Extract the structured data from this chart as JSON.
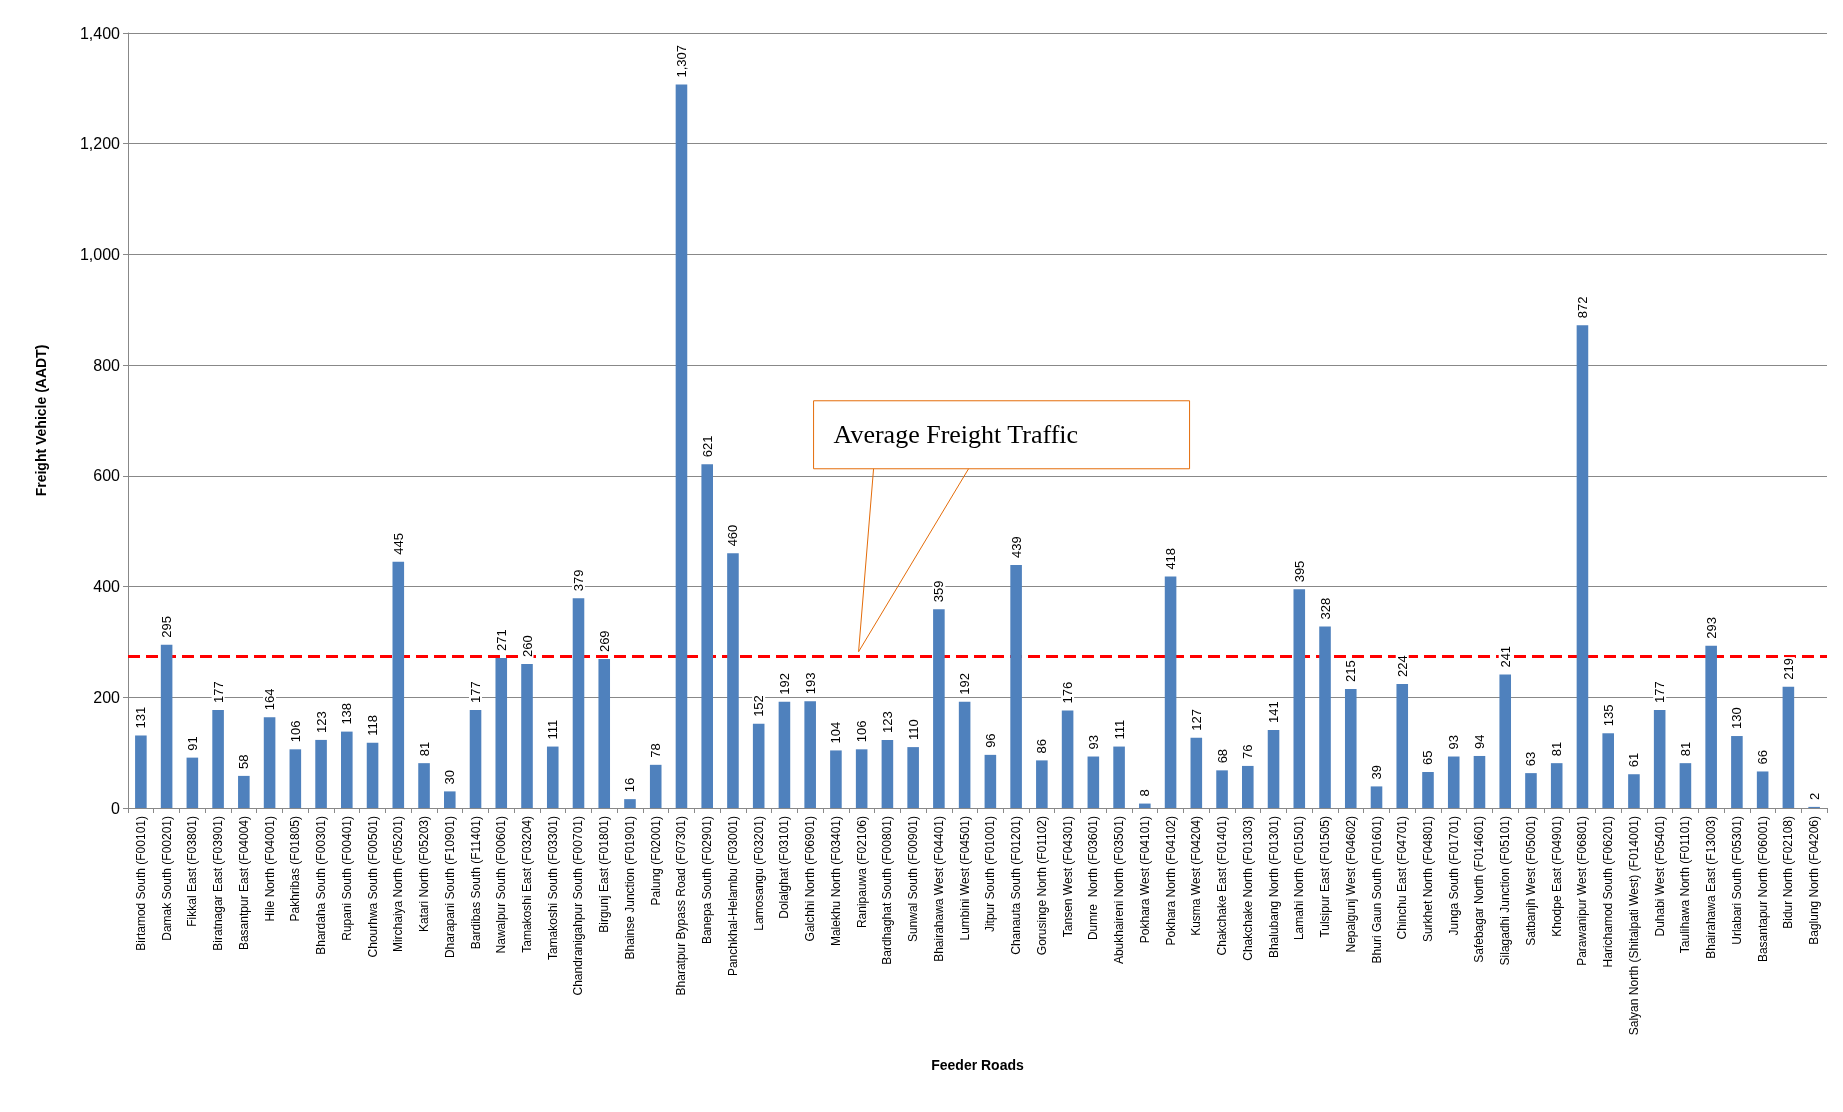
{
  "chart_data": {
    "type": "bar",
    "xlabel": "Feeder Roads",
    "ylabel": "Freight Vehicle (AADT)",
    "categories": [
      "Birtamod South (F00101)",
      "Damak South (F00201)",
      "Fikkal East (F03801)",
      "Biratnagar East (F03901)",
      "Basantpur East (F04004)",
      "Hile North (F04001)",
      "Pakhribas (F01805)",
      "Bhardaha South (F00301)",
      "Rupani South (F00401)",
      "Chourhwa South (F00501)",
      "Mirchaiya North (F05201)",
      "Katari North (F05203)",
      "Dharapani South (F10901)",
      "Bardibas South (F11401)",
      "Nawalpur South (F00601)",
      "Tamakoshi East (F03204)",
      "Tamakoshi South (F03301)",
      "Chandranigahpur South (F00701)",
      "Birgunj East (F01801)",
      "Bhainse Junction (F01901)",
      "Palung (F02001)",
      "Bharatpur Bypass Road (F07301)",
      "Banepa South (F02901)",
      "Panchkhal-Helambu (F03001)",
      "Lamosangu (F03201)",
      "Dolalghat (F03101)",
      "Galchhi North (F06901)",
      "Malekhu North (F03401)",
      "Ranipauwa (F02106)",
      "Bardhaghat South (F00801)",
      "Sunwal South (F00901)",
      "Bhairahawa West (F04401)",
      "Lumbini West (F04501)",
      "Jitpur South (F01001)",
      "Chanauta South (F01201)",
      "Gorusinge North (F01102)",
      "Tansen West (F04301)",
      "Dumre  North (F03601)",
      "Abukhaireni North (F03501)",
      "Pokhara West (F04101)",
      "Pokhara North (F04102)",
      "Kusma West (F04204)",
      "Chakchake East (F01401)",
      "Chakchake North (F01303)",
      "Bhalubang North (F01301)",
      "Lamahi North (F01501)",
      "Tulsipur East (F01505)",
      "Nepalgunj West (F04602)",
      "Bhuri Gaun South (F01601)",
      "Chinchu East (F04701)",
      "Surkhet North (F04801)",
      "Junga South (F01701)",
      "Safebagar North (F014601)",
      "Silagadhi Junction (F05101)",
      "Satbanjh West (F05001)",
      "Khodpe East (F04901)",
      "Parawanipur West (F06801)",
      "Harichamod South (F06201)",
      "Salyan North (Shitalpati West) (F014001)",
      "Duhabi West (F05401)",
      "Taulihawa North (F01101)",
      "Bhairahawa East (F13003)",
      "Urlabari South (F05301)",
      "Basantapur North (F06001)",
      "Bidur North (F02108)",
      "Baglung North (F04206)"
    ],
    "values": [
      131,
      295,
      91,
      177,
      58,
      164,
      106,
      123,
      138,
      118,
      445,
      81,
      30,
      177,
      271,
      260,
      111,
      379,
      269,
      16,
      78,
      1307,
      621,
      460,
      152,
      192,
      193,
      104,
      106,
      123,
      110,
      359,
      192,
      96,
      439,
      86,
      176,
      93,
      111,
      8,
      418,
      127,
      68,
      76,
      141,
      395,
      328,
      215,
      39,
      224,
      65,
      93,
      94,
      241,
      63,
      81,
      872,
      135,
      61,
      177,
      81,
      293,
      130,
      66,
      219,
      2
    ],
    "color": "#4f81bd",
    "value_labels": [
      "131",
      "295",
      "91",
      "177",
      "58",
      "164",
      "106",
      "123",
      "138",
      "118",
      "445",
      "81",
      "30",
      "177",
      "271",
      "260",
      "111",
      "379",
      "269",
      "16",
      "78",
      "1,307",
      "621",
      "460",
      "152",
      "192",
      "193",
      "104",
      "106",
      "123",
      "110",
      "359",
      "192",
      "96",
      "439",
      "86",
      "176",
      "93",
      "111",
      "8",
      "418",
      "127",
      "68",
      "76",
      "141",
      "395",
      "328",
      "215",
      "39",
      "224",
      "65",
      "93",
      "94",
      "241",
      "63",
      "81",
      "872",
      "135",
      "61",
      "177",
      "81",
      "293",
      "130",
      "66",
      "219",
      "2"
    ],
    "annotations": [
      "Average Freight Traffic"
    ],
    "ylim": [
      0,
      1400
    ],
    "yticks": [
      0,
      200,
      400,
      600,
      800,
      {
        "value": 1000,
        "label": "1,000"
      },
      {
        "value": 1200,
        "label": "1,200"
      },
      {
        "value": 1400,
        "label": "1,400"
      }
    ],
    "grid": "y",
    "ref_lines": [
      {
        "axis": "y",
        "value": 275,
        "color": "#ff0000",
        "line_style": "dashed"
      }
    ]
  }
}
